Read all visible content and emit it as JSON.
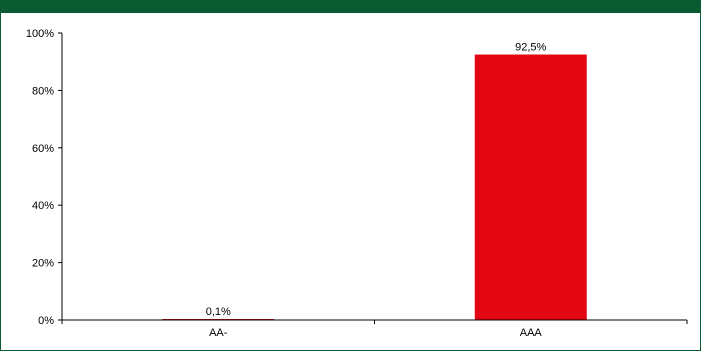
{
  "chart_data": {
    "type": "bar",
    "categories": [
      "AA-",
      "AAA"
    ],
    "values": [
      0.1,
      92.5
    ],
    "value_labels": [
      "0,1%",
      "92,5%"
    ],
    "ylim": [
      0,
      100
    ],
    "yticks": [
      0,
      20,
      40,
      60,
      80,
      100
    ],
    "ytick_labels": [
      "0%",
      "20%",
      "40%",
      "60%",
      "80%",
      "100%"
    ],
    "grid": false,
    "legend": "none",
    "bar_color": "#e30613"
  },
  "colors": {
    "header_band": "#0a5a32",
    "axis": "#000000"
  }
}
